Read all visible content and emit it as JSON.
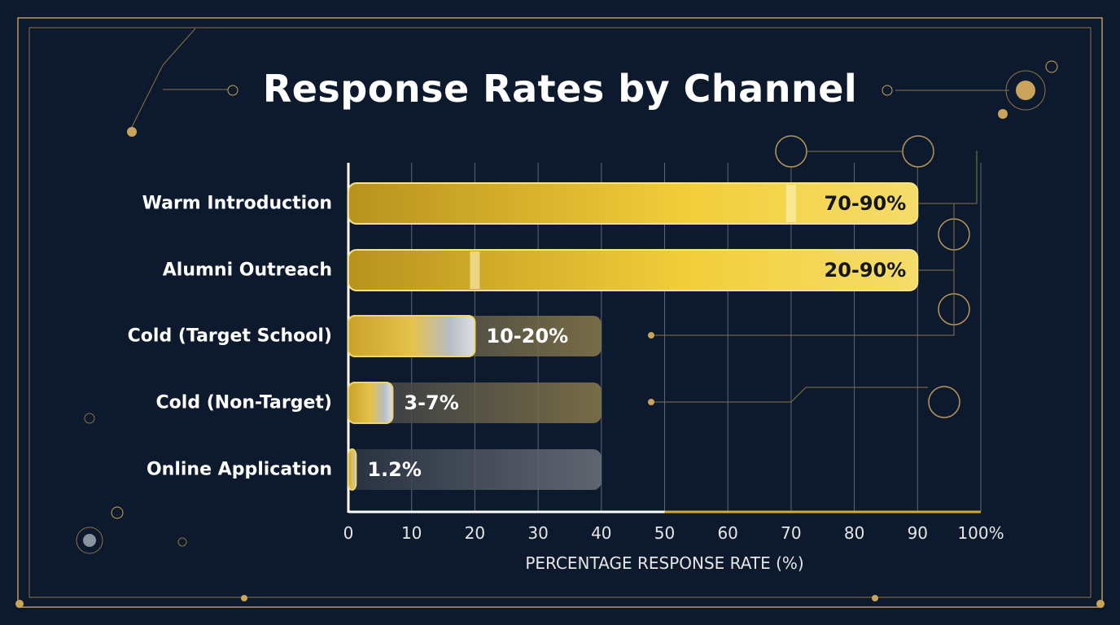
{
  "chart_data": {
    "type": "bar",
    "orientation": "horizontal",
    "title": "Response Rates by Channel",
    "xlabel": "PERCENTAGE RESPONSE RATE (%)",
    "ylabel": "",
    "xlim": [
      0,
      100
    ],
    "x_ticks": [
      "0",
      "10",
      "20",
      "30",
      "40",
      "50",
      "60",
      "70",
      "80",
      "90",
      "100%"
    ],
    "grid": "vertical",
    "categories": [
      "Warm Introduction",
      "Alumni Outreach",
      "Cold (Target School)",
      "Cold (Non-Target)",
      "Online Application"
    ],
    "ranges": [
      {
        "low": 70,
        "high": 90,
        "label": "70-90%"
      },
      {
        "low": 20,
        "high": 90,
        "label": "20-90%"
      },
      {
        "low": 10,
        "high": 20,
        "label": "10-20%",
        "track_max": 40
      },
      {
        "low": 3,
        "high": 7,
        "label": "3-7%",
        "track_max": 40
      },
      {
        "low": 1.2,
        "high": 1.2,
        "label": "1.2%",
        "track_max": 40
      }
    ],
    "colors": {
      "background": "#0d1a2e",
      "gold": "#e8c03a",
      "accent_line": "#b8975a",
      "text": "#ffffff"
    }
  }
}
